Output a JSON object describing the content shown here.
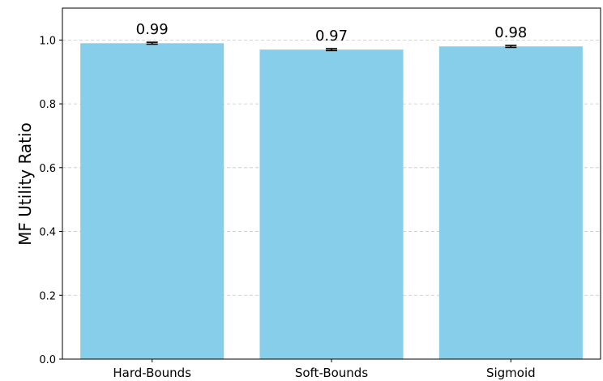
{
  "chart_data": {
    "type": "bar",
    "categories": [
      "Hard-Bounds",
      "Soft-Bounds",
      "Sigmoid"
    ],
    "values": [
      0.99,
      0.97,
      0.98
    ],
    "errors": [
      0.003,
      0.003,
      0.003
    ],
    "data_labels": [
      "0.99",
      "0.97",
      "0.98"
    ],
    "title": "",
    "xlabel": "",
    "ylabel": "MF Utility Ratio",
    "ylim": [
      0,
      1.1
    ],
    "yticks": [
      0.0,
      0.2,
      0.4,
      0.6,
      0.8,
      1.0
    ],
    "ytick_labels": [
      "0.0",
      "0.2",
      "0.4",
      "0.6",
      "0.8",
      "1.0"
    ],
    "grid": "y-dashed",
    "bar_color": "#87ceeb"
  }
}
